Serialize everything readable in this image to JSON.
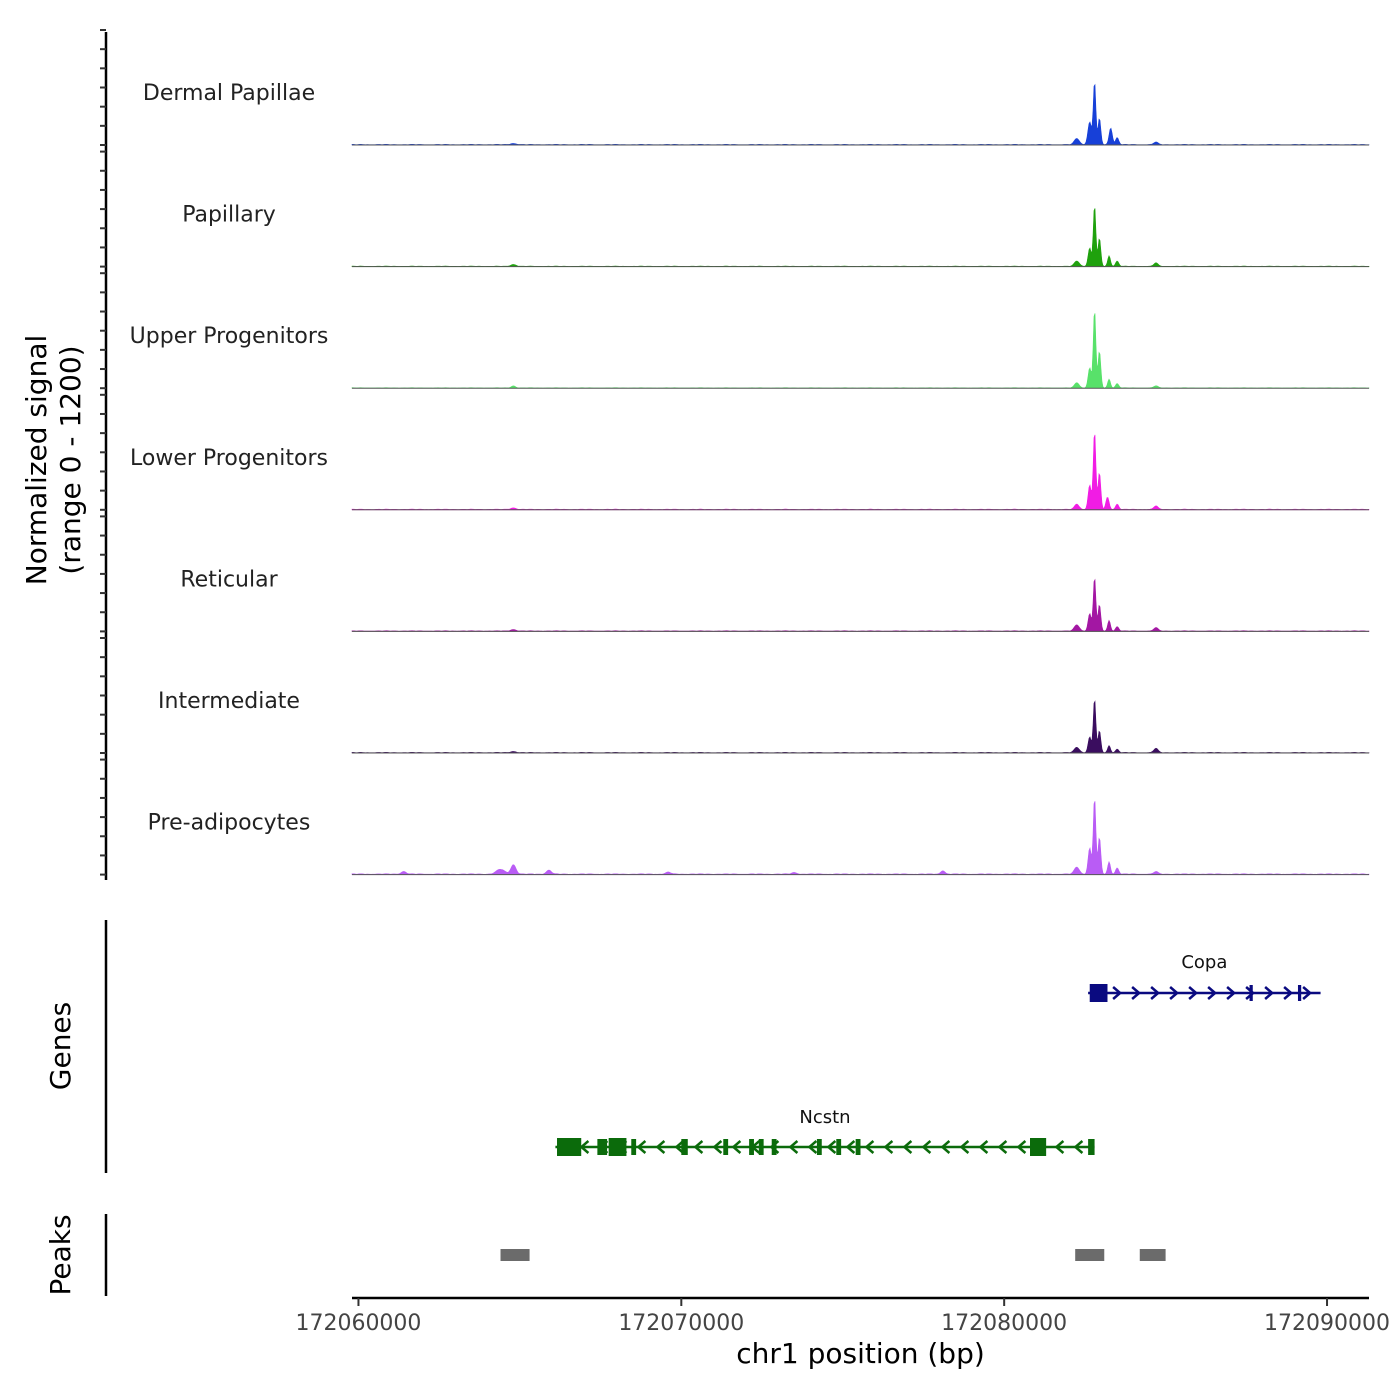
{
  "chart_data": {
    "type": "area",
    "title": "",
    "signal_axis_label": [
      "Normalized signal",
      "(range 0 - 1200)"
    ],
    "ylim": [
      0,
      1200
    ],
    "xlabel": "chr1 position (bp)",
    "xlim": [
      172059800,
      172091300
    ],
    "x_ticks": [
      172060000,
      172070000,
      172080000,
      172090000
    ],
    "x_tick_labels": [
      "172060000",
      "172070000",
      "172080000",
      "172090000"
    ],
    "tracks": [
      {
        "name": "Dermal Papillae",
        "color": "#1740d8",
        "peak_height": 720,
        "baseline": 8,
        "peaks": [
          [
            172064800,
            14,
            120
          ],
          [
            172082250,
            70,
            110
          ],
          [
            172082650,
            260,
            80
          ],
          [
            172082800,
            720,
            55
          ],
          [
            172082950,
            300,
            60
          ],
          [
            172083300,
            190,
            70
          ],
          [
            172083500,
            80,
            70
          ],
          [
            172084700,
            30,
            90
          ]
        ]
      },
      {
        "name": "Papillary",
        "color": "#1fa10d",
        "peak_height": 700,
        "baseline": 6,
        "peaks": [
          [
            172064800,
            22,
            110
          ],
          [
            172082250,
            60,
            110
          ],
          [
            172082650,
            210,
            70
          ],
          [
            172082800,
            700,
            55
          ],
          [
            172082950,
            320,
            60
          ],
          [
            172083250,
            120,
            60
          ],
          [
            172083500,
            60,
            70
          ],
          [
            172084700,
            40,
            90
          ]
        ]
      },
      {
        "name": "Upper Progenitors",
        "color": "#58e16a",
        "peak_height": 900,
        "baseline": 6,
        "peaks": [
          [
            172064800,
            24,
            90
          ],
          [
            172082250,
            60,
            100
          ],
          [
            172082650,
            230,
            70
          ],
          [
            172082800,
            900,
            55
          ],
          [
            172082950,
            420,
            60
          ],
          [
            172083250,
            100,
            60
          ],
          [
            172083500,
            50,
            70
          ],
          [
            172084700,
            24,
            90
          ]
        ]
      },
      {
        "name": "Lower Progenitors",
        "color": "#f11ce4",
        "peak_height": 900,
        "baseline": 8,
        "peaks": [
          [
            172064800,
            18,
            110
          ],
          [
            172082250,
            60,
            100
          ],
          [
            172082650,
            280,
            70
          ],
          [
            172082800,
            900,
            55
          ],
          [
            172082950,
            420,
            60
          ],
          [
            172083200,
            140,
            70
          ],
          [
            172083500,
            60,
            70
          ],
          [
            172084700,
            40,
            90
          ]
        ]
      },
      {
        "name": "Reticular",
        "color": "#a317a3",
        "peak_height": 620,
        "baseline": 8,
        "peaks": [
          [
            172064800,
            18,
            110
          ],
          [
            172082250,
            70,
            110
          ],
          [
            172082650,
            200,
            70
          ],
          [
            172082800,
            620,
            55
          ],
          [
            172082950,
            300,
            60
          ],
          [
            172083250,
            120,
            60
          ],
          [
            172083500,
            50,
            70
          ],
          [
            172084700,
            40,
            90
          ]
        ]
      },
      {
        "name": "Intermediate",
        "color": "#3a0d5f",
        "peak_height": 620,
        "baseline": 8,
        "peaks": [
          [
            172064800,
            14,
            110
          ],
          [
            172082250,
            60,
            110
          ],
          [
            172082650,
            180,
            70
          ],
          [
            172082800,
            620,
            55
          ],
          [
            172082950,
            250,
            60
          ],
          [
            172083250,
            80,
            60
          ],
          [
            172083500,
            40,
            70
          ],
          [
            172084700,
            50,
            90
          ]
        ]
      },
      {
        "name": "Pre-adipocytes",
        "color": "#b95cf5",
        "peak_height": 880,
        "baseline": 10,
        "peaks": [
          [
            172061400,
            30,
            110
          ],
          [
            172064400,
            55,
            180
          ],
          [
            172064800,
            110,
            110
          ],
          [
            172065900,
            45,
            110
          ],
          [
            172069600,
            22,
            110
          ],
          [
            172073500,
            18,
            110
          ],
          [
            172078100,
            40,
            90
          ],
          [
            172082250,
            80,
            110
          ],
          [
            172082650,
            300,
            70
          ],
          [
            172082800,
            880,
            55
          ],
          [
            172082950,
            420,
            60
          ],
          [
            172083250,
            140,
            60
          ],
          [
            172083500,
            70,
            70
          ],
          [
            172084700,
            30,
            90
          ]
        ]
      }
    ],
    "genes_label": "Genes",
    "genes": [
      {
        "name": "Copa",
        "strand": "+",
        "color": "#0a0a80",
        "start": 172082600,
        "end": 172089800,
        "exons": [
          [
            172082650,
            172083200
          ],
          [
            172087600,
            172087700
          ],
          [
            172089100,
            172089200
          ]
        ]
      },
      {
        "name": "Ncstn",
        "strand": "-",
        "color": "#0b6b0b",
        "start": 172066100,
        "end": 172082800,
        "exons": [
          [
            172066150,
            172066900
          ],
          [
            172067400,
            172067700
          ],
          [
            172067750,
            172068300
          ],
          [
            172068450,
            172068600
          ],
          [
            172070000,
            172070200
          ],
          [
            172071300,
            172071450
          ],
          [
            172072100,
            172072250
          ],
          [
            172072400,
            172072550
          ],
          [
            172072800,
            172072950
          ],
          [
            172074200,
            172074350
          ],
          [
            172074800,
            172074950
          ],
          [
            172075400,
            172075550
          ],
          [
            172080800,
            172081300
          ],
          [
            172082600,
            172082800
          ]
        ]
      }
    ],
    "peaks_label": "Peaks",
    "peak_regions": [
      [
        172064400,
        172065300
      ],
      [
        172082200,
        172083100
      ],
      [
        172084200,
        172085000
      ]
    ]
  }
}
